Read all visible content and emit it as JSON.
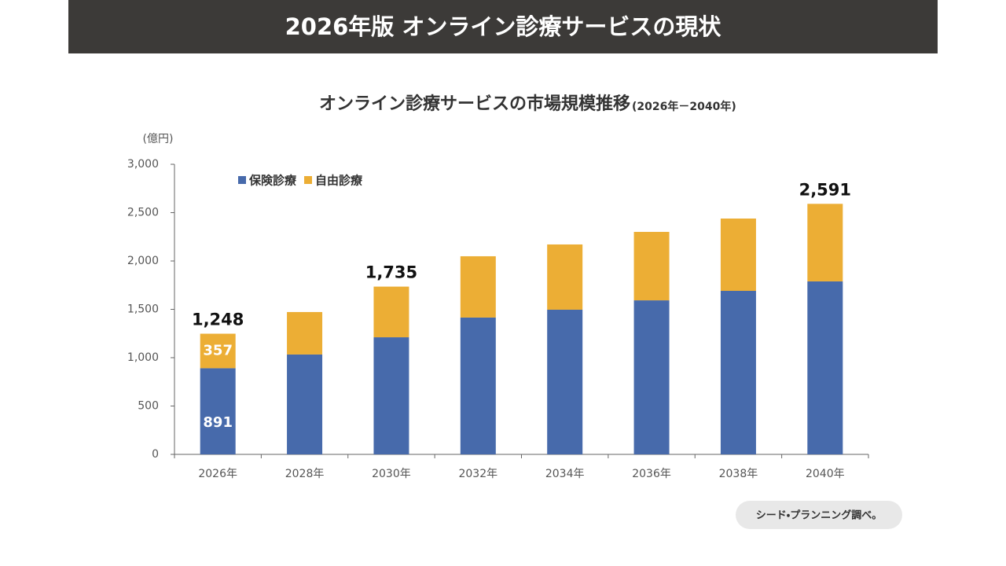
{
  "header": {
    "title": "2026年版 オンライン診療サービスの現状"
  },
  "chart_data": {
    "type": "stacked_bar",
    "title": "オンライン診療サービスの市場規模推移",
    "subtitle": "(2026年－2040年)",
    "y_unit": "(億円)",
    "categories": [
      "2026年",
      "2028年",
      "2030年",
      "2032年",
      "2034年",
      "2036年",
      "2038年",
      "2040年"
    ],
    "series": [
      {
        "name": "保険診療",
        "color": "#476aab",
        "values": [
          891,
          1033,
          1211,
          1415,
          1496,
          1593,
          1691,
          1789
        ],
        "value_labels": [
          "891",
          null,
          null,
          null,
          null,
          null,
          null,
          null
        ]
      },
      {
        "name": "自由診療",
        "color": "#ecae35",
        "values": [
          357,
          439,
          524,
          634,
          675,
          708,
          748,
          802
        ],
        "value_labels": [
          "357",
          null,
          null,
          null,
          null,
          null,
          null,
          null
        ]
      }
    ],
    "totals": [
      1248,
      null,
      1735,
      null,
      null,
      null,
      null,
      2591
    ],
    "total_labels": [
      "1,248",
      null,
      "1,735",
      null,
      null,
      null,
      null,
      "2,591"
    ],
    "ylim": [
      0,
      3000
    ],
    "yticks": [
      0,
      500,
      {
        "value": 1000,
        "label": "1,000"
      },
      {
        "value": 1500,
        "label": "1,500"
      },
      {
        "value": 2000,
        "label": "2,000"
      },
      {
        "value": 2500,
        "label": "2,500"
      },
      {
        "value": 3000,
        "label": "3,000"
      }
    ],
    "grid": false
  },
  "footer": {
    "source": "シード・プランニング調べ。"
  }
}
